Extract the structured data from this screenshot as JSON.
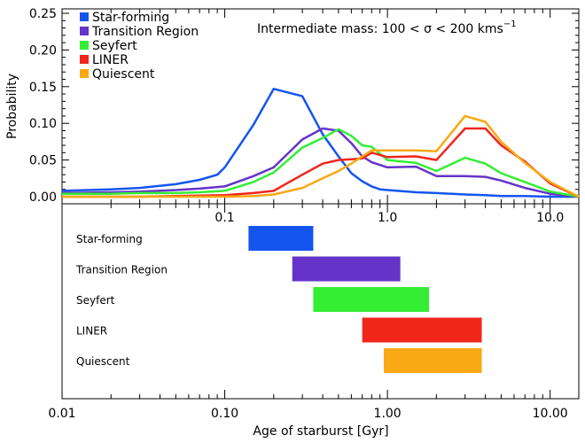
{
  "chart_data": [
    {
      "type": "line",
      "annotation": "Intermediate mass: 100 < σ < 200 kms",
      "annotation_sup": "−1",
      "ylabel": "Probability",
      "xscale": "log",
      "xlim": [
        0.01,
        15
      ],
      "ylim": [
        0,
        0.25
      ],
      "yticks": [
        "0.00",
        "0.05",
        "0.10",
        "0.15",
        "0.20",
        "0.25"
      ],
      "xticks": [
        "0.1",
        "1.0",
        "10.0"
      ],
      "legend_position": "top-left",
      "grid": false,
      "series": [
        {
          "name": "Star-forming",
          "color": "#1455f0",
          "x": [
            0.01,
            0.02,
            0.03,
            0.05,
            0.07,
            0.09,
            0.1,
            0.15,
            0.2,
            0.3,
            0.4,
            0.5,
            0.6,
            0.7,
            0.8,
            0.9,
            1.0,
            1.5,
            2.0,
            3.0,
            4.0,
            5.0,
            7.0,
            10.0,
            15.0
          ],
          "y": [
            0.008,
            0.01,
            0.012,
            0.017,
            0.023,
            0.03,
            0.04,
            0.098,
            0.147,
            0.137,
            0.085,
            0.055,
            0.032,
            0.021,
            0.014,
            0.01,
            0.009,
            0.006,
            0.005,
            0.003,
            0.002,
            0.001,
            0.001,
            0.0,
            0.0
          ]
        },
        {
          "name": "Transition Region",
          "color": "#6633c9",
          "x": [
            0.01,
            0.02,
            0.03,
            0.05,
            0.07,
            0.1,
            0.15,
            0.2,
            0.3,
            0.4,
            0.5,
            0.6,
            0.7,
            0.8,
            1.0,
            1.5,
            2.0,
            3.0,
            4.0,
            5.0,
            7.0,
            10.0,
            15.0
          ],
          "y": [
            0.005,
            0.006,
            0.007,
            0.009,
            0.011,
            0.014,
            0.028,
            0.04,
            0.078,
            0.093,
            0.09,
            0.073,
            0.055,
            0.047,
            0.04,
            0.041,
            0.028,
            0.028,
            0.027,
            0.022,
            0.012,
            0.004,
            0.0
          ]
        },
        {
          "name": "Seyfert",
          "color": "#33ee33",
          "x": [
            0.01,
            0.02,
            0.03,
            0.05,
            0.07,
            0.1,
            0.15,
            0.2,
            0.3,
            0.4,
            0.5,
            0.6,
            0.7,
            0.8,
            1.0,
            1.5,
            2.0,
            3.0,
            4.0,
            5.0,
            7.0,
            10.0,
            15.0
          ],
          "y": [
            0.004,
            0.004,
            0.005,
            0.005,
            0.006,
            0.008,
            0.02,
            0.033,
            0.067,
            0.08,
            0.092,
            0.083,
            0.07,
            0.068,
            0.05,
            0.046,
            0.035,
            0.053,
            0.045,
            0.032,
            0.02,
            0.007,
            0.0
          ]
        },
        {
          "name": "LINER",
          "color": "#f0261b",
          "x": [
            0.01,
            0.03,
            0.05,
            0.1,
            0.15,
            0.2,
            0.3,
            0.4,
            0.5,
            0.6,
            0.7,
            0.8,
            1.0,
            1.5,
            2.0,
            3.0,
            4.0,
            5.0,
            7.0,
            10.0,
            15.0
          ],
          "y": [
            0.0,
            0.0,
            0.001,
            0.002,
            0.005,
            0.008,
            0.03,
            0.045,
            0.05,
            0.051,
            0.052,
            0.06,
            0.054,
            0.055,
            0.05,
            0.093,
            0.093,
            0.07,
            0.048,
            0.018,
            0.0
          ]
        },
        {
          "name": "Quiescent",
          "color": "#f8a914",
          "x": [
            0.01,
            0.05,
            0.1,
            0.15,
            0.2,
            0.3,
            0.4,
            0.5,
            0.6,
            0.7,
            0.8,
            1.0,
            1.5,
            2.0,
            3.0,
            4.0,
            5.0,
            7.0,
            10.0,
            15.0
          ],
          "y": [
            0.0,
            0.0,
            0.0,
            0.001,
            0.003,
            0.012,
            0.025,
            0.035,
            0.045,
            0.055,
            0.063,
            0.063,
            0.063,
            0.062,
            0.11,
            0.102,
            0.075,
            0.046,
            0.02,
            0.0
          ]
        }
      ]
    },
    {
      "type": "bar",
      "orientation": "horizontal-range",
      "xlabel": "Age of starburst [Gyr]",
      "xscale": "log",
      "xlim": [
        0.01,
        15
      ],
      "xticks": [
        "0.01",
        "0.10",
        "1.00",
        "10.00"
      ],
      "categories": [
        "Star-forming",
        "Transition Region",
        "Seyfert",
        "LINER",
        "Quiescent"
      ],
      "ranges": [
        [
          0.14,
          0.35
        ],
        [
          0.26,
          1.2
        ],
        [
          0.35,
          1.8
        ],
        [
          0.7,
          3.8
        ],
        [
          0.95,
          3.8
        ]
      ],
      "colors": [
        "#1455f0",
        "#6633c9",
        "#33ee33",
        "#f0261b",
        "#f8a914"
      ]
    }
  ]
}
